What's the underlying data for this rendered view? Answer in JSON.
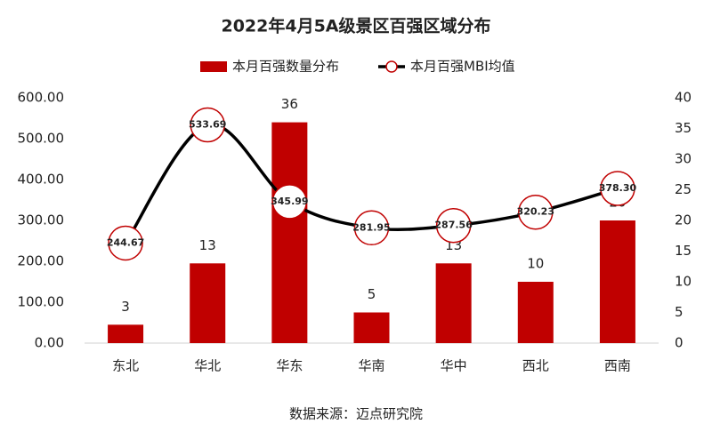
{
  "chart_data": {
    "type": "combo",
    "title": "2022年4月5A级景区百强区域分布",
    "categories": [
      "东北",
      "华北",
      "华东",
      "华南",
      "华中",
      "西北",
      "西南"
    ],
    "series": [
      {
        "name": "本月百强数量分布",
        "type": "bar",
        "color": "#c00000",
        "axis": "y2",
        "values": [
          3,
          13,
          36,
          5,
          13,
          10,
          20
        ]
      },
      {
        "name": "本月百强MBI均值",
        "type": "line",
        "color": "#000000",
        "marker_color": "#c00000",
        "values": [
          244.67,
          533.69,
          345.99,
          281.95,
          287.56,
          320.23,
          378.3
        ],
        "value_labels": [
          "244.67",
          "533.69",
          "345.99",
          "281.95",
          "287.56",
          "320.23",
          "378.30"
        ]
      }
    ],
    "ylim": [
      0,
      600
    ],
    "yticks": [
      {
        "value": 0,
        "label": "0.00"
      },
      {
        "value": 100,
        "label": "100.00"
      },
      {
        "value": 200,
        "label": "200.00"
      },
      {
        "value": 300,
        "label": "300.00"
      },
      {
        "value": 400,
        "label": "400.00"
      },
      {
        "value": 500,
        "label": "500.00"
      },
      {
        "value": 600,
        "label": "600.00"
      }
    ],
    "y2lim": [
      0,
      40
    ],
    "y2ticks": [
      0,
      5,
      10,
      15,
      20,
      25,
      30,
      35,
      40
    ],
    "legend": "top",
    "source": "数据来源：迈点研究院"
  }
}
